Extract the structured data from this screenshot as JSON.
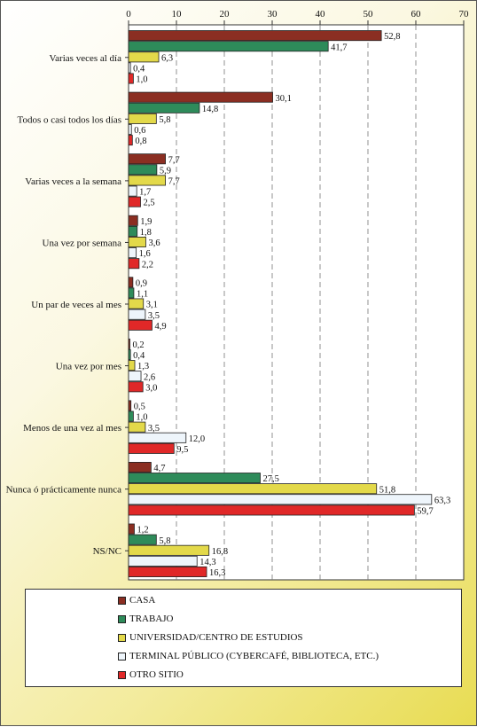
{
  "chart_data": {
    "type": "bar",
    "orientation": "horizontal",
    "categories": [
      "Varias veces al día",
      "Todos o casi todos los días",
      "Varias veces a la semana",
      "Una vez por semana",
      "Un par de veces al mes",
      "Una vez por mes",
      "Menos de una vez al mes",
      "Nunca ó prácticamente nunca",
      "NS/NC"
    ],
    "series": [
      {
        "name": "CASA",
        "color": "#8b2e22",
        "values": [
          52.8,
          30.1,
          7.7,
          1.9,
          0.9,
          0.2,
          0.5,
          4.7,
          1.2
        ],
        "labels": [
          "52,8",
          "30,1",
          "7,7",
          "1,9",
          "0,9",
          "0,2",
          "0,5",
          "4,7",
          "1,2"
        ]
      },
      {
        "name": "TRABAJO",
        "color": "#2e8b5a",
        "values": [
          41.7,
          14.8,
          5.9,
          1.8,
          1.1,
          0.4,
          1.0,
          27.5,
          5.8
        ],
        "labels": [
          "41,7",
          "14,8",
          "5,9",
          "1,8",
          "1,1",
          "0,4",
          "1,0",
          "27,5",
          "5,8"
        ]
      },
      {
        "name": "UNIVERSIDAD/CENTRO DE ESTUDIOS",
        "color": "#e3d94a",
        "values": [
          6.3,
          5.8,
          7.7,
          3.6,
          3.1,
          1.3,
          3.5,
          51.8,
          16.8
        ],
        "labels": [
          "6,3",
          "5,8",
          "7,7",
          "3,6",
          "3,1",
          "1,3",
          "3,5",
          "51,8",
          "16,8"
        ]
      },
      {
        "name": "TERMINAL PÚBLICO (CYBERCAFÉ, BIBLIOTECA, ETC.)",
        "color": "#eef5fb",
        "values": [
          0.4,
          0.6,
          1.7,
          1.6,
          3.5,
          2.6,
          12.0,
          63.3,
          14.3
        ],
        "labels": [
          "0,4",
          "0,6",
          "1,7",
          "1,6",
          "3,5",
          "2,6",
          "12,0",
          "63,3",
          "14,3"
        ]
      },
      {
        "name": "OTRO SITIO",
        "color": "#e02828",
        "values": [
          1.0,
          0.8,
          2.5,
          2.2,
          4.9,
          3.0,
          9.5,
          59.7,
          16.3
        ],
        "labels": [
          "1,0",
          "0,8",
          "2,5",
          "2,2",
          "4,9",
          "3,0",
          "9,5",
          "59,7",
          "16,3"
        ]
      }
    ],
    "xlim": [
      0,
      70
    ],
    "xticks": [
      "0",
      "10",
      "20",
      "30",
      "40",
      "50",
      "60",
      "70"
    ],
    "xtick_values": [
      0,
      10,
      20,
      30,
      40,
      50,
      60,
      70
    ],
    "grid": "vertical dashed",
    "legend_position": "bottom"
  }
}
